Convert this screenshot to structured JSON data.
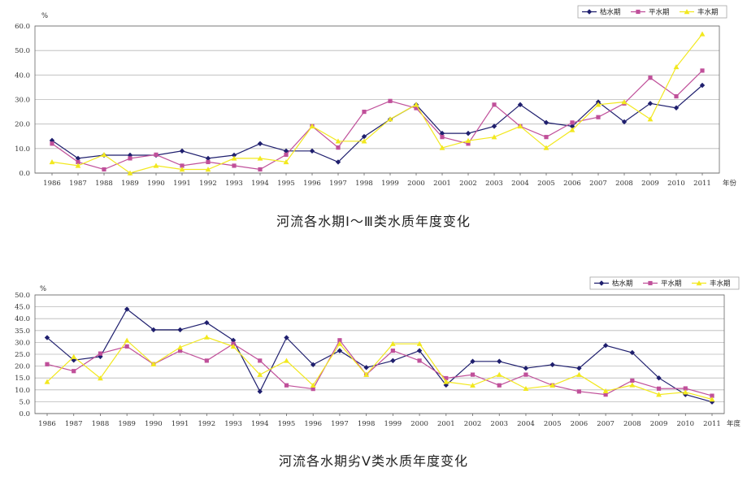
{
  "colors": {
    "dry": "#1f1f6e",
    "normal": "#c0509a",
    "wet": "#f2e81e",
    "grid": "#b8b8b8",
    "axis": "#666666"
  },
  "chart_data": [
    {
      "type": "line",
      "title": "河流各水期Ⅰ～Ⅲ类水质年度变化",
      "xlabel": "年份",
      "ylabel": "%",
      "ylim": [
        0,
        60
      ],
      "yticks": [
        "0.0",
        "10.0",
        "20.0",
        "30.0",
        "40.0",
        "50.0",
        "60.0"
      ],
      "legend_position": "top-right",
      "grid": true,
      "categories": [
        "1986",
        "1987",
        "1988",
        "1989",
        "1990",
        "1991",
        "1992",
        "1993",
        "1994",
        "1995",
        "1996",
        "1997",
        "1998",
        "1999",
        "2000",
        "2001",
        "2002",
        "2003",
        "2004",
        "2005",
        "2006",
        "2007",
        "2008",
        "2009",
        "2010",
        "2011"
      ],
      "series": [
        {
          "name": "枯水期",
          "marker": "diamond",
          "values": [
            13.3,
            6.0,
            7.3,
            7.3,
            7.3,
            9.0,
            6.0,
            7.3,
            12.0,
            9.0,
            9.0,
            4.5,
            14.9,
            21.9,
            27.9,
            16.2,
            16.2,
            19.1,
            27.9,
            20.6,
            19.1,
            29.0,
            20.9,
            28.4,
            26.6,
            35.8
          ]
        },
        {
          "name": "平水期",
          "marker": "square",
          "values": [
            12.0,
            4.5,
            1.5,
            6.0,
            7.5,
            3.0,
            4.5,
            3.0,
            1.5,
            7.5,
            19.1,
            10.4,
            25.0,
            29.4,
            26.5,
            14.7,
            12.0,
            27.9,
            19.1,
            14.7,
            20.6,
            22.8,
            28.4,
            38.9,
            31.3,
            41.8
          ]
        },
        {
          "name": "丰水期",
          "marker": "triangle",
          "values": [
            4.5,
            3.0,
            7.5,
            0.0,
            3.0,
            1.5,
            1.5,
            6.0,
            6.0,
            4.5,
            19.1,
            13.0,
            13.0,
            22.0,
            27.9,
            10.3,
            13.2,
            14.7,
            19.1,
            10.3,
            17.6,
            27.9,
            29.0,
            22.0,
            43.3,
            56.7
          ]
        }
      ]
    },
    {
      "type": "line",
      "title": "河流各水期劣Ⅴ类水质年度变化",
      "xlabel": "年度",
      "ylabel": "%",
      "ylim": [
        0,
        50
      ],
      "yticks": [
        "0.0",
        "5.0",
        "10.0",
        "15.0",
        "20.0",
        "25.0",
        "30.0",
        "35.0",
        "40.0",
        "45.0",
        "50.0"
      ],
      "legend_position": "top-right",
      "grid": true,
      "categories": [
        "1986",
        "1987",
        "1988",
        "1989",
        "1990",
        "1991",
        "1992",
        "1993",
        "1994",
        "1995",
        "1996",
        "1997",
        "1998",
        "1999",
        "2000",
        "2001",
        "2002",
        "2003",
        "2004",
        "2005",
        "2006",
        "2007",
        "2008",
        "2009",
        "2010",
        "2011"
      ],
      "series": [
        {
          "name": "枯水期",
          "marker": "diamond",
          "values": [
            32.0,
            22.5,
            24.0,
            44.0,
            35.3,
            35.3,
            38.3,
            30.9,
            9.3,
            32.0,
            20.6,
            26.5,
            19.4,
            22.3,
            26.5,
            12.0,
            22.0,
            22.0,
            19.1,
            20.6,
            19.1,
            28.7,
            25.7,
            15.0,
            8.0,
            4.9
          ]
        },
        {
          "name": "平水期",
          "marker": "square",
          "values": [
            20.8,
            17.9,
            25.3,
            28.3,
            20.8,
            26.5,
            22.3,
            29.4,
            22.3,
            11.9,
            10.4,
            30.9,
            16.4,
            26.5,
            22.3,
            14.9,
            16.4,
            11.9,
            16.4,
            11.9,
            9.3,
            8.0,
            13.9,
            10.5,
            10.6,
            7.5
          ]
        },
        {
          "name": "丰水期",
          "marker": "triangle",
          "values": [
            13.4,
            23.9,
            14.9,
            30.8,
            20.8,
            27.9,
            32.2,
            28.3,
            16.4,
            22.3,
            11.9,
            29.4,
            16.4,
            29.4,
            29.4,
            13.4,
            11.9,
            16.4,
            10.5,
            11.9,
            16.4,
            9.5,
            12.0,
            8.0,
            9.0,
            6.0
          ]
        }
      ]
    }
  ]
}
